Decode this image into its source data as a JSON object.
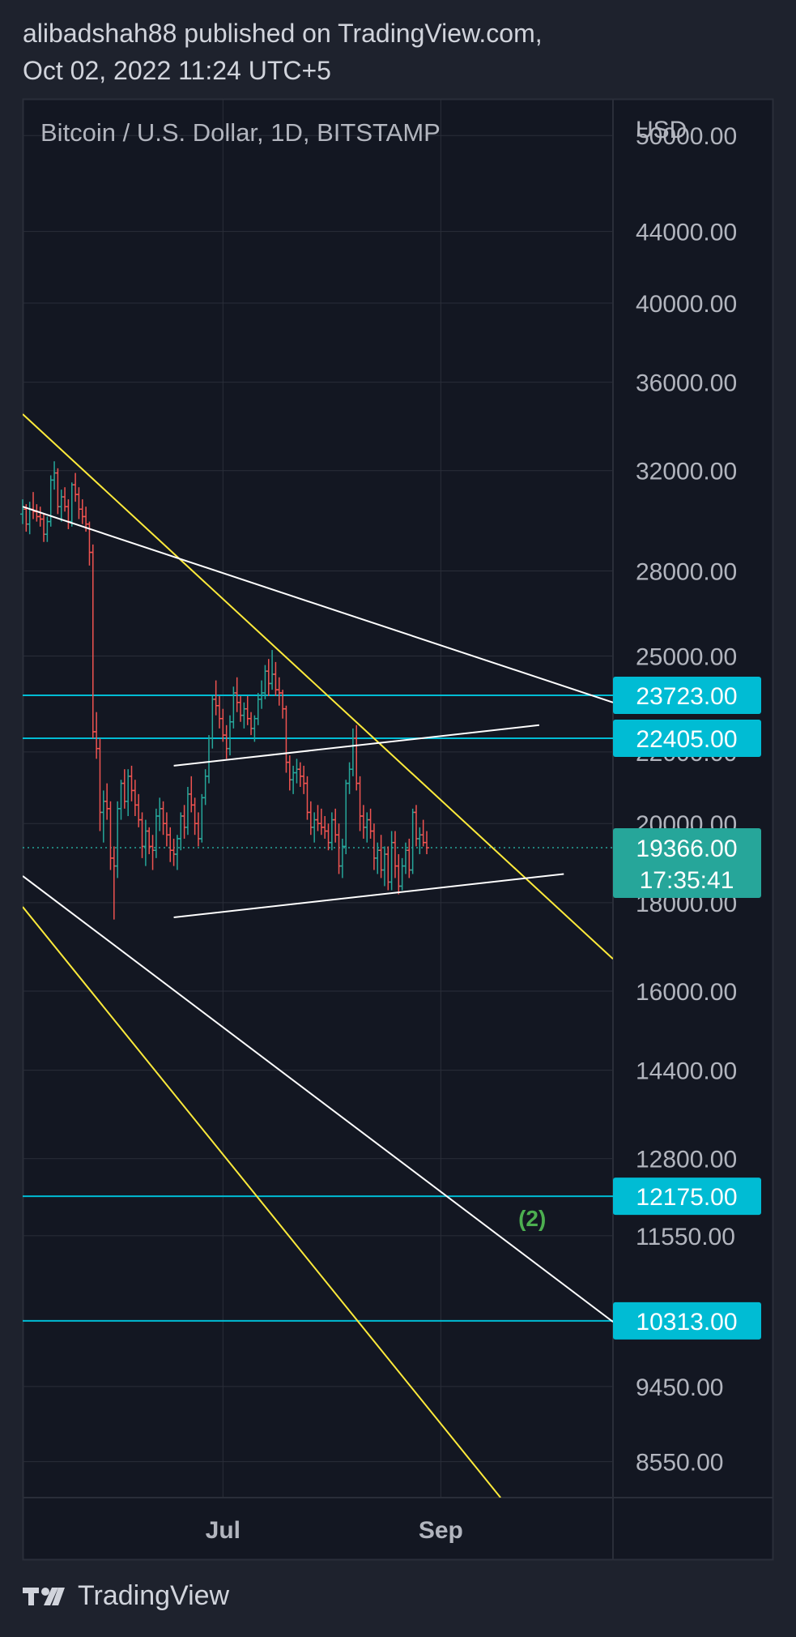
{
  "header": {
    "line1": "alibadshah88 published on TradingView.com,",
    "line2": "Oct 02, 2022 11:24 UTC+5"
  },
  "footer": {
    "brand": "TradingView"
  },
  "colors": {
    "background": "#131722",
    "frame": "#1e222d",
    "grid": "#2a2e39",
    "up": "#26a69a",
    "down": "#ef5350",
    "level": "#00bcd4",
    "trend_yellow": "#ffeb3b",
    "trend_white": "#ffffff",
    "last_price": "#26a69a",
    "annotation": "#4caf50"
  },
  "chart_data": {
    "type": "candlestick",
    "title": "Bitcoin / U.S. Dollar, 1D, BITSTAMP",
    "currency": "USD",
    "scale": "log",
    "y_range": [
      8150,
      52500
    ],
    "x_range": [
      "2022-05-05",
      "2022-10-20"
    ],
    "grid": true,
    "y_ticks": [
      50000,
      44000,
      40000,
      36000,
      32000,
      28000,
      25000,
      22000,
      20000,
      18000,
      16000,
      14400,
      12800,
      11550,
      9450,
      8550
    ],
    "x_ticks": [
      {
        "date": "2022-07-01",
        "label": "Jul"
      },
      {
        "date": "2022-09-01",
        "label": "Sep"
      }
    ],
    "ohlc_start": "2022-05-05",
    "ohlc": [
      [
        30200,
        30800,
        29800,
        30400
      ],
      [
        30400,
        30600,
        29500,
        29800
      ],
      [
        29800,
        30700,
        29400,
        30400
      ],
      [
        30400,
        31100,
        30000,
        30300
      ],
      [
        30300,
        30600,
        29900,
        30100
      ],
      [
        30100,
        30500,
        29700,
        30000
      ],
      [
        30000,
        30200,
        29100,
        29400
      ],
      [
        29400,
        30100,
        29100,
        29900
      ],
      [
        29900,
        31800,
        29700,
        31600
      ],
      [
        31600,
        32400,
        31200,
        31900
      ],
      [
        31900,
        32100,
        30200,
        30500
      ],
      [
        30500,
        31200,
        29900,
        30900
      ],
      [
        30900,
        31300,
        30300,
        30500
      ],
      [
        30500,
        30800,
        29600,
        29900
      ],
      [
        29900,
        31500,
        29700,
        31400
      ],
      [
        31400,
        31900,
        30700,
        31000
      ],
      [
        31000,
        31300,
        30000,
        30400
      ],
      [
        30400,
        30800,
        29800,
        30100
      ],
      [
        30100,
        30500,
        29500,
        29800
      ],
      [
        29800,
        29900,
        28200,
        28700
      ],
      [
        28700,
        29000,
        22400,
        22600
      ],
      [
        22600,
        23200,
        21800,
        22100
      ],
      [
        22100,
        22400,
        19800,
        20300
      ],
      [
        20300,
        20900,
        19500,
        20600
      ],
      [
        20600,
        21100,
        20100,
        20400
      ],
      [
        20400,
        20600,
        18800,
        19100
      ],
      [
        19100,
        19400,
        17600,
        18900
      ],
      [
        18900,
        20600,
        18600,
        20400
      ],
      [
        20400,
        21200,
        20100,
        21100
      ],
      [
        21100,
        21500,
        20400,
        20600
      ],
      [
        20600,
        21500,
        20200,
        21300
      ],
      [
        21300,
        21600,
        20600,
        20900
      ],
      [
        20900,
        21200,
        20200,
        20500
      ],
      [
        20500,
        20800,
        19900,
        20100
      ],
      [
        20100,
        20300,
        19100,
        19400
      ],
      [
        19400,
        20100,
        18900,
        19800
      ],
      [
        19800,
        19900,
        19200,
        19400
      ],
      [
        19400,
        19700,
        18800,
        19300
      ],
      [
        19300,
        20400,
        19100,
        20200
      ],
      [
        20200,
        20700,
        19800,
        20400
      ],
      [
        20400,
        20600,
        19700,
        20000
      ],
      [
        20000,
        20300,
        19400,
        19700
      ],
      [
        19700,
        19900,
        19000,
        19300
      ],
      [
        19300,
        19600,
        18900,
        19200
      ],
      [
        19200,
        19700,
        18800,
        19600
      ],
      [
        19600,
        20300,
        19300,
        20200
      ],
      [
        20200,
        20500,
        19600,
        19900
      ],
      [
        19900,
        21000,
        19700,
        20800
      ],
      [
        20800,
        21300,
        20300,
        20500
      ],
      [
        20500,
        20700,
        19700,
        20000
      ],
      [
        20000,
        20300,
        19400,
        19600
      ],
      [
        19600,
        20800,
        19500,
        20700
      ],
      [
        20700,
        21500,
        20500,
        21300
      ],
      [
        21300,
        22500,
        21100,
        22400
      ],
      [
        22400,
        23700,
        22100,
        23600
      ],
      [
        23600,
        24200,
        23100,
        23400
      ],
      [
        23400,
        23700,
        22700,
        23000
      ],
      [
        23000,
        23300,
        22300,
        22500
      ],
      [
        22500,
        22800,
        21800,
        22100
      ],
      [
        22100,
        23100,
        21900,
        22900
      ],
      [
        22900,
        24000,
        22700,
        23800
      ],
      [
        23800,
        24300,
        23200,
        23500
      ],
      [
        23500,
        23700,
        22900,
        23100
      ],
      [
        23100,
        23500,
        22700,
        23300
      ],
      [
        23300,
        23700,
        22800,
        23000
      ],
      [
        23000,
        23200,
        22500,
        22700
      ],
      [
        22700,
        23100,
        22300,
        23000
      ],
      [
        23000,
        23800,
        22800,
        23600
      ],
      [
        23600,
        24200,
        23300,
        23800
      ],
      [
        23800,
        24700,
        23600,
        24500
      ],
      [
        24500,
        24900,
        23700,
        24100
      ],
      [
        24100,
        25200,
        23900,
        24400
      ],
      [
        24400,
        24800,
        23700,
        23900
      ],
      [
        23900,
        24300,
        23400,
        23800
      ],
      [
        23800,
        23900,
        23000,
        23300
      ],
      [
        23300,
        23400,
        21400,
        21700
      ],
      [
        21700,
        21900,
        20900,
        21200
      ],
      [
        21200,
        21600,
        20800,
        21400
      ],
      [
        21400,
        21800,
        21100,
        21500
      ],
      [
        21500,
        21700,
        21000,
        21300
      ],
      [
        21300,
        21600,
        20800,
        21100
      ],
      [
        21100,
        21300,
        20100,
        20300
      ],
      [
        20300,
        20600,
        19700,
        19900
      ],
      [
        19900,
        20300,
        19500,
        20100
      ],
      [
        20100,
        20500,
        19800,
        20000
      ],
      [
        20000,
        20400,
        19700,
        19900
      ],
      [
        19900,
        20200,
        19600,
        19800
      ],
      [
        19800,
        20000,
        19300,
        19500
      ],
      [
        19500,
        20300,
        19300,
        20100
      ],
      [
        20100,
        20400,
        19500,
        19700
      ],
      [
        19700,
        20000,
        18700,
        18900
      ],
      [
        18900,
        19600,
        18600,
        19400
      ],
      [
        19400,
        21200,
        19200,
        21100
      ],
      [
        21100,
        21700,
        20800,
        21500
      ],
      [
        21500,
        22700,
        21300,
        22400
      ],
      [
        22400,
        22800,
        20900,
        21100
      ],
      [
        21100,
        21300,
        19800,
        20200
      ],
      [
        20200,
        20500,
        19600,
        19900
      ],
      [
        19900,
        20300,
        19500,
        20100
      ],
      [
        20100,
        20400,
        19600,
        19800
      ],
      [
        19800,
        20000,
        18800,
        19100
      ],
      [
        19100,
        19500,
        18700,
        19300
      ],
      [
        19300,
        19700,
        18600,
        18800
      ],
      [
        18800,
        19400,
        18400,
        19200
      ],
      [
        19200,
        19400,
        18300,
        18500
      ],
      [
        18500,
        19800,
        18300,
        19500
      ],
      [
        19500,
        19800,
        18600,
        18900
      ],
      [
        18900,
        19200,
        18200,
        18400
      ],
      [
        18400,
        19100,
        18300,
        18900
      ],
      [
        18900,
        19500,
        18700,
        19300
      ],
      [
        19300,
        19600,
        18600,
        18800
      ],
      [
        18800,
        20400,
        18700,
        20300
      ],
      [
        20300,
        20500,
        19400,
        19600
      ],
      [
        19600,
        19900,
        19200,
        19700
      ],
      [
        19700,
        20100,
        19400,
        19500
      ],
      [
        19500,
        19800,
        19200,
        19366
      ]
    ],
    "horizontal_levels": [
      23723,
      22405,
      12175,
      10313
    ],
    "price_labels": [
      "23723.00",
      "22405.00",
      "12175.00",
      "10313.00"
    ],
    "last_price": {
      "value": 19366,
      "label": "19366.00",
      "countdown": "17:35:41"
    },
    "trendlines": [
      {
        "color": "yellow",
        "points": [
          [
            "2022-05-05",
            34500
          ],
          [
            "2022-10-20",
            16700
          ]
        ]
      },
      {
        "color": "yellow",
        "points": [
          [
            "2022-05-05",
            17900
          ],
          [
            "2022-09-18",
            8150
          ]
        ]
      },
      {
        "color": "white",
        "points": [
          [
            "2022-05-05",
            30500
          ],
          [
            "2022-10-20",
            23500
          ]
        ]
      },
      {
        "color": "white",
        "points": [
          [
            "2022-06-17",
            21600
          ],
          [
            "2022-09-29",
            22800
          ]
        ]
      },
      {
        "color": "white",
        "points": [
          [
            "2022-06-17",
            17650
          ],
          [
            "2022-10-06",
            18700
          ]
        ]
      },
      {
        "color": "white",
        "points": [
          [
            "2022-05-05",
            18650
          ],
          [
            "2022-10-20",
            10300
          ]
        ]
      }
    ],
    "annotation": {
      "text": "(2)",
      "date": "2022-09-27",
      "price": 11700
    }
  }
}
